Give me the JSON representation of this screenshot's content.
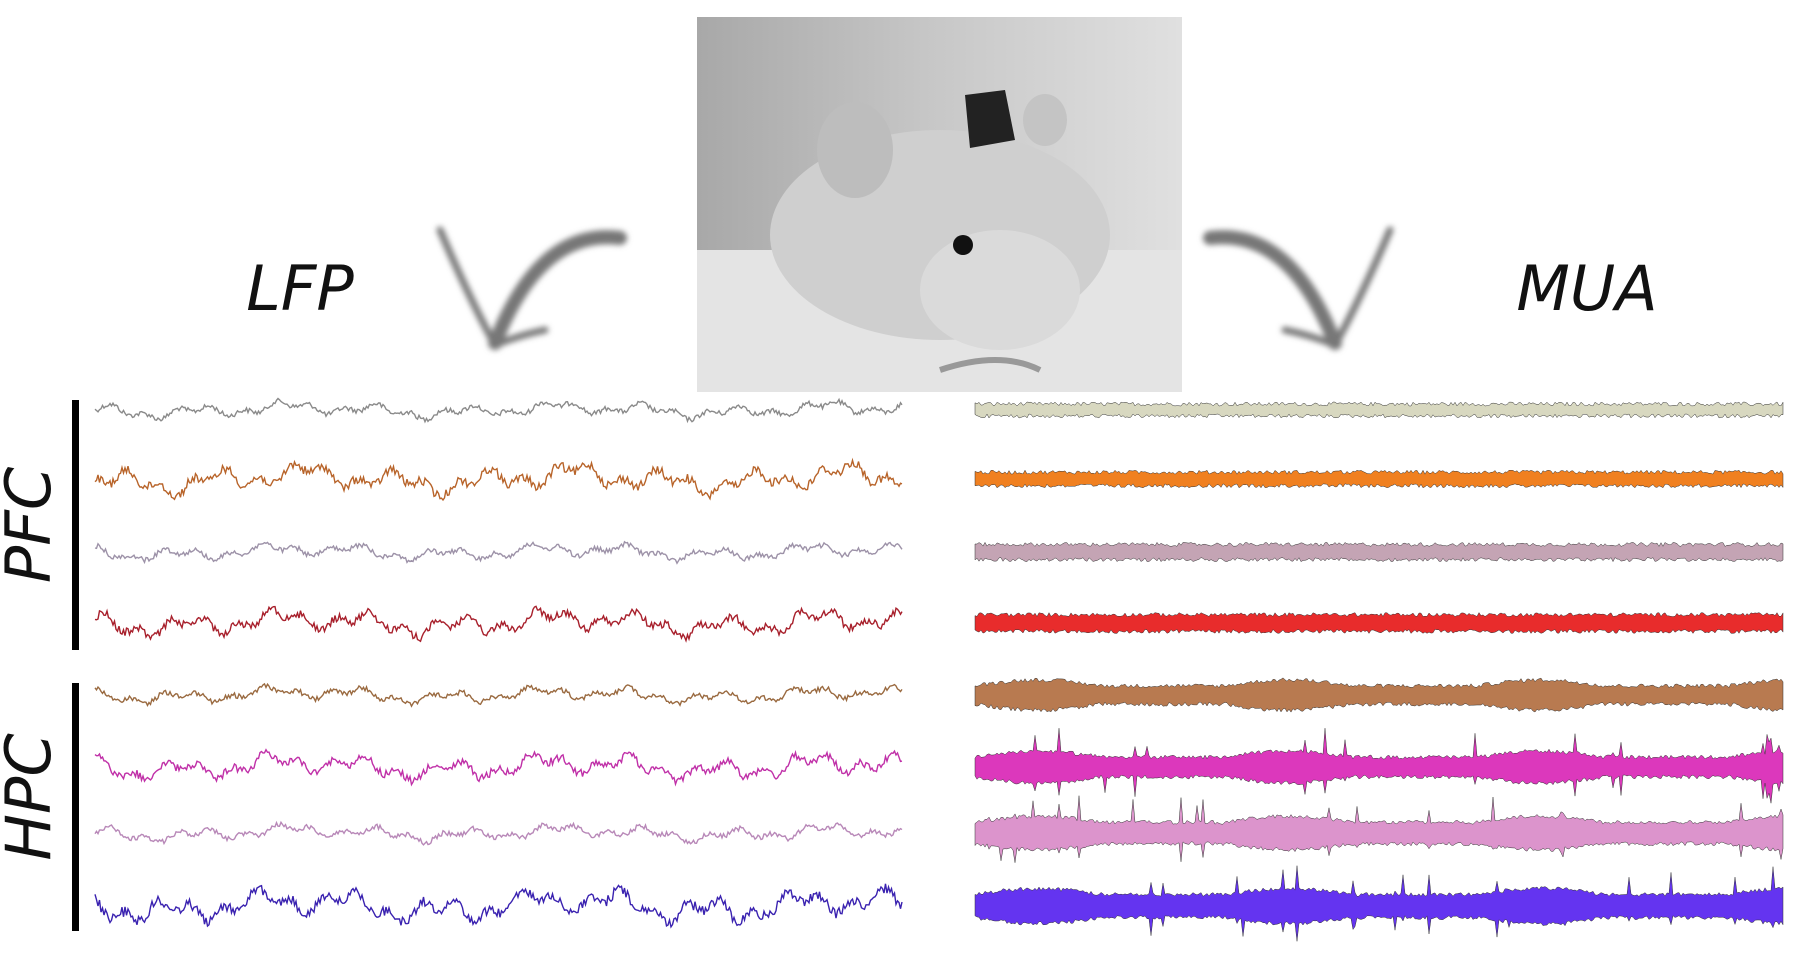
{
  "labels": {
    "left": "LFP",
    "right": "MUA"
  },
  "regions": [
    "PFC",
    "HPC"
  ]
}
